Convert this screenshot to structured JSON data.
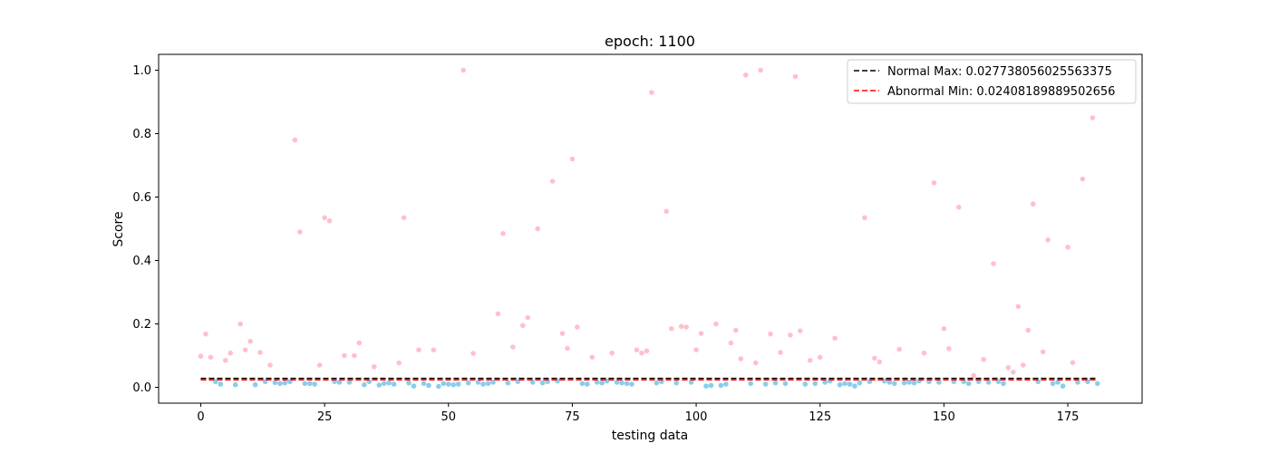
{
  "chart_data": {
    "type": "scatter",
    "title": "epoch: 1100",
    "xlabel": "testing data",
    "ylabel": "Score",
    "xlim": [
      -8.5,
      190
    ],
    "ylim": [
      -0.05,
      1.05
    ],
    "xticks": [
      0,
      25,
      50,
      75,
      100,
      125,
      150,
      175
    ],
    "yticks": [
      0.0,
      0.2,
      0.4,
      0.6,
      0.8,
      1.0
    ],
    "xtick_labels": [
      "0",
      "25",
      "50",
      "75",
      "100",
      "125",
      "150",
      "175"
    ],
    "ytick_labels": [
      "0.0",
      "0.2",
      "0.4",
      "0.6",
      "0.8",
      "1.0"
    ],
    "legend_position": "top-right",
    "lines": [
      {
        "name": "Normal Max: 0.027738056025563375",
        "label": "Normal Max: 0.027738056025563375",
        "y": 0.027738056025563375,
        "x_range": [
          0,
          181
        ],
        "color": "#000000",
        "style": "dashed"
      },
      {
        "name": "Abnormal Min: 0.02408189889502656",
        "label": "Abnormal Min: 0.02408189889502656",
        "y": 0.02408189889502656,
        "x_range": [
          0,
          181
        ],
        "color": "#ff0000",
        "style": "dashed"
      }
    ],
    "series": [
      {
        "kind": "abnormal",
        "color": "#ffc0cb",
        "points": [
          [
            0,
            0.098
          ],
          [
            1,
            0.168
          ],
          [
            2,
            0.095
          ],
          [
            5,
            0.085
          ],
          [
            6,
            0.108
          ],
          [
            8,
            0.2
          ],
          [
            9,
            0.118
          ],
          [
            10,
            0.145
          ],
          [
            12,
            0.11
          ],
          [
            14,
            0.07
          ],
          [
            19,
            0.78
          ],
          [
            20,
            0.49
          ],
          [
            24,
            0.07
          ],
          [
            25,
            0.535
          ],
          [
            26,
            0.525
          ],
          [
            29,
            0.1
          ],
          [
            31,
            0.1
          ],
          [
            32,
            0.14
          ],
          [
            35,
            0.065
          ],
          [
            40,
            0.077
          ],
          [
            41,
            0.535
          ],
          [
            44,
            0.118
          ],
          [
            47,
            0.118
          ],
          [
            53,
            1.0
          ],
          [
            55,
            0.107
          ],
          [
            60,
            0.232
          ],
          [
            61,
            0.485
          ],
          [
            63,
            0.127
          ],
          [
            65,
            0.195
          ],
          [
            66,
            0.22
          ],
          [
            68,
            0.5
          ],
          [
            71,
            0.65
          ],
          [
            73,
            0.17
          ],
          [
            74,
            0.123
          ],
          [
            75,
            0.72
          ],
          [
            76,
            0.19
          ],
          [
            79,
            0.095
          ],
          [
            83,
            0.108
          ],
          [
            88,
            0.118
          ],
          [
            89,
            0.108
          ],
          [
            90,
            0.115
          ],
          [
            91,
            0.93
          ],
          [
            94,
            0.555
          ],
          [
            95,
            0.185
          ],
          [
            97,
            0.192
          ],
          [
            98,
            0.19
          ],
          [
            100,
            0.118
          ],
          [
            101,
            0.17
          ],
          [
            104,
            0.2
          ],
          [
            107,
            0.14
          ],
          [
            108,
            0.18
          ],
          [
            109,
            0.09
          ],
          [
            110,
            0.985
          ],
          [
            112,
            0.077
          ],
          [
            113,
            1.0
          ],
          [
            115,
            0.168
          ],
          [
            117,
            0.11
          ],
          [
            119,
            0.165
          ],
          [
            120,
            0.98
          ],
          [
            121,
            0.178
          ],
          [
            123,
            0.085
          ],
          [
            125,
            0.095
          ],
          [
            128,
            0.155
          ],
          [
            134,
            0.535
          ],
          [
            136,
            0.092
          ],
          [
            137,
            0.08
          ],
          [
            141,
            0.12
          ],
          [
            146,
            0.108
          ],
          [
            148,
            0.645
          ],
          [
            150,
            0.185
          ],
          [
            151,
            0.122
          ],
          [
            153,
            0.568
          ],
          [
            156,
            0.037
          ],
          [
            158,
            0.088
          ],
          [
            160,
            0.39
          ],
          [
            163,
            0.062
          ],
          [
            164,
            0.048
          ],
          [
            165,
            0.255
          ],
          [
            166,
            0.07
          ],
          [
            167,
            0.18
          ],
          [
            168,
            0.578
          ],
          [
            170,
            0.112
          ],
          [
            171,
            0.465
          ],
          [
            175,
            0.442
          ],
          [
            176,
            0.078
          ],
          [
            178,
            0.657
          ],
          [
            180,
            0.85
          ]
        ]
      },
      {
        "kind": "normal",
        "color": "#87ceeb",
        "points": [
          [
            3,
            0.018
          ],
          [
            4,
            0.01
          ],
          [
            7,
            0.008
          ],
          [
            11,
            0.008
          ],
          [
            13,
            0.018
          ],
          [
            15,
            0.015
          ],
          [
            16,
            0.012
          ],
          [
            17,
            0.014
          ],
          [
            18,
            0.018
          ],
          [
            21,
            0.012
          ],
          [
            22,
            0.012
          ],
          [
            23,
            0.01
          ],
          [
            27,
            0.018
          ],
          [
            28,
            0.016
          ],
          [
            30,
            0.016
          ],
          [
            33,
            0.008
          ],
          [
            34,
            0.018
          ],
          [
            36,
            0.007
          ],
          [
            37,
            0.012
          ],
          [
            38,
            0.014
          ],
          [
            39,
            0.01
          ],
          [
            42,
            0.014
          ],
          [
            43,
            0.004
          ],
          [
            45,
            0.012
          ],
          [
            46,
            0.006
          ],
          [
            48,
            0.003
          ],
          [
            49,
            0.012
          ],
          [
            50,
            0.01
          ],
          [
            51,
            0.008
          ],
          [
            52,
            0.01
          ],
          [
            54,
            0.014
          ],
          [
            56,
            0.016
          ],
          [
            57,
            0.01
          ],
          [
            58,
            0.012
          ],
          [
            59,
            0.016
          ],
          [
            62,
            0.014
          ],
          [
            64,
            0.018
          ],
          [
            67,
            0.016
          ],
          [
            69,
            0.014
          ],
          [
            70,
            0.018
          ],
          [
            72,
            0.02
          ],
          [
            77,
            0.012
          ],
          [
            78,
            0.01
          ],
          [
            80,
            0.016
          ],
          [
            81,
            0.014
          ],
          [
            82,
            0.02
          ],
          [
            84,
            0.016
          ],
          [
            85,
            0.014
          ],
          [
            86,
            0.012
          ],
          [
            87,
            0.01
          ],
          [
            92,
            0.014
          ],
          [
            93,
            0.018
          ],
          [
            96,
            0.014
          ],
          [
            99,
            0.016
          ],
          [
            102,
            0.004
          ],
          [
            103,
            0.006
          ],
          [
            105,
            0.006
          ],
          [
            106,
            0.01
          ],
          [
            111,
            0.012
          ],
          [
            114,
            0.01
          ],
          [
            116,
            0.014
          ],
          [
            118,
            0.012
          ],
          [
            122,
            0.01
          ],
          [
            124,
            0.012
          ],
          [
            126,
            0.016
          ],
          [
            127,
            0.02
          ],
          [
            129,
            0.008
          ],
          [
            130,
            0.012
          ],
          [
            131,
            0.01
          ],
          [
            132,
            0.004
          ],
          [
            133,
            0.014
          ],
          [
            135,
            0.018
          ],
          [
            138,
            0.02
          ],
          [
            139,
            0.016
          ],
          [
            140,
            0.012
          ],
          [
            142,
            0.014
          ],
          [
            143,
            0.016
          ],
          [
            144,
            0.014
          ],
          [
            145,
            0.02
          ],
          [
            147,
            0.018
          ],
          [
            149,
            0.016
          ],
          [
            152,
            0.018
          ],
          [
            154,
            0.018
          ],
          [
            155,
            0.012
          ],
          [
            157,
            0.018
          ],
          [
            159,
            0.016
          ],
          [
            161,
            0.018
          ],
          [
            162,
            0.012
          ],
          [
            169,
            0.018
          ],
          [
            172,
            0.012
          ],
          [
            173,
            0.016
          ],
          [
            174,
            0.004
          ],
          [
            177,
            0.016
          ],
          [
            179,
            0.018
          ],
          [
            181,
            0.012
          ]
        ]
      }
    ]
  }
}
